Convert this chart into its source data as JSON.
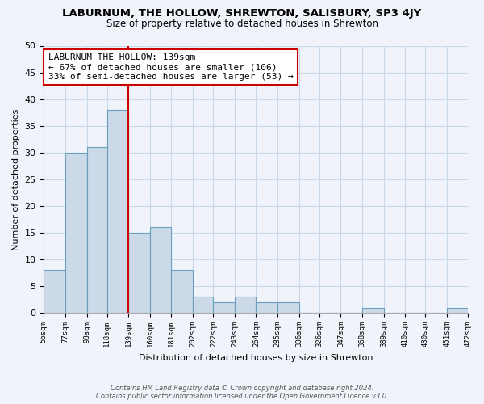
{
  "title": "LABURNUM, THE HOLLOW, SHREWTON, SALISBURY, SP3 4JY",
  "subtitle": "Size of property relative to detached houses in Shrewton",
  "xlabel": "Distribution of detached houses by size in Shrewton",
  "ylabel": "Number of detached properties",
  "bin_edges": [
    56,
    77,
    98,
    118,
    139,
    160,
    181,
    202,
    222,
    243,
    264,
    285,
    306,
    326,
    347,
    368,
    389,
    410,
    430,
    451,
    472
  ],
  "bin_labels": [
    "56sqm",
    "77sqm",
    "98sqm",
    "118sqm",
    "139sqm",
    "160sqm",
    "181sqm",
    "202sqm",
    "222sqm",
    "243sqm",
    "264sqm",
    "285sqm",
    "306sqm",
    "326sqm",
    "347sqm",
    "368sqm",
    "389sqm",
    "410sqm",
    "430sqm",
    "451sqm",
    "472sqm"
  ],
  "counts": [
    8,
    30,
    31,
    38,
    15,
    16,
    8,
    3,
    2,
    3,
    2,
    2,
    0,
    0,
    0,
    1,
    0,
    0,
    0,
    1
  ],
  "bar_color": "#ccd9e8",
  "bar_edge_color": "#6a9fc0",
  "vline_x": 139,
  "vline_color": "#cc0000",
  "annotation_line1": "LABURNUM THE HOLLOW: 139sqm",
  "annotation_line2": "← 67% of detached houses are smaller (106)",
  "annotation_line3": "33% of semi-detached houses are larger (53) →",
  "annotation_box_color": "#ffffff",
  "annotation_box_edge_color": "#cc0000",
  "ylim": [
    0,
    50
  ],
  "yticks": [
    0,
    5,
    10,
    15,
    20,
    25,
    30,
    35,
    40,
    45,
    50
  ],
  "footer_line1": "Contains HM Land Registry data © Crown copyright and database right 2024.",
  "footer_line2": "Contains public sector information licensed under the Open Government Licence v3.0.",
  "bg_color": "#f0f4fa",
  "grid_color": "#c8d8e8"
}
